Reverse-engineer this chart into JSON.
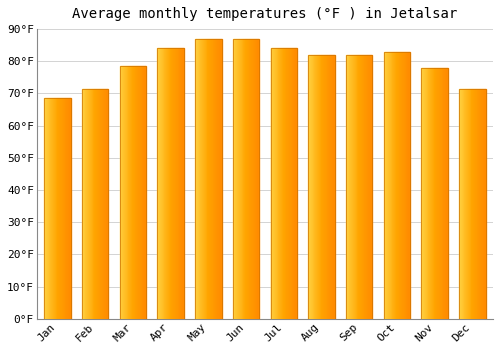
{
  "title": "Average monthly temperatures (°F ) in Jetalsar",
  "months": [
    "Jan",
    "Feb",
    "Mar",
    "Apr",
    "May",
    "Jun",
    "Jul",
    "Aug",
    "Sep",
    "Oct",
    "Nov",
    "Dec"
  ],
  "values": [
    68.5,
    71.5,
    78.5,
    84.0,
    87.0,
    87.0,
    84.0,
    82.0,
    82.0,
    83.0,
    78.0,
    71.5
  ],
  "bar_color_left": "#FFD040",
  "bar_color_center": "#FFA500",
  "bar_color_right": "#FF8C00",
  "bar_edge_color": "#CC7000",
  "ylim": [
    0,
    90
  ],
  "yticks": [
    0,
    10,
    20,
    30,
    40,
    50,
    60,
    70,
    80,
    90
  ],
  "ytick_labels": [
    "0°F",
    "10°F",
    "20°F",
    "30°F",
    "40°F",
    "50°F",
    "60°F",
    "70°F",
    "80°F",
    "90°F"
  ],
  "background_color": "#FFFFFF",
  "grid_color": "#CCCCCC",
  "title_fontsize": 10,
  "tick_fontsize": 8,
  "font_family": "monospace",
  "bar_width": 0.7
}
